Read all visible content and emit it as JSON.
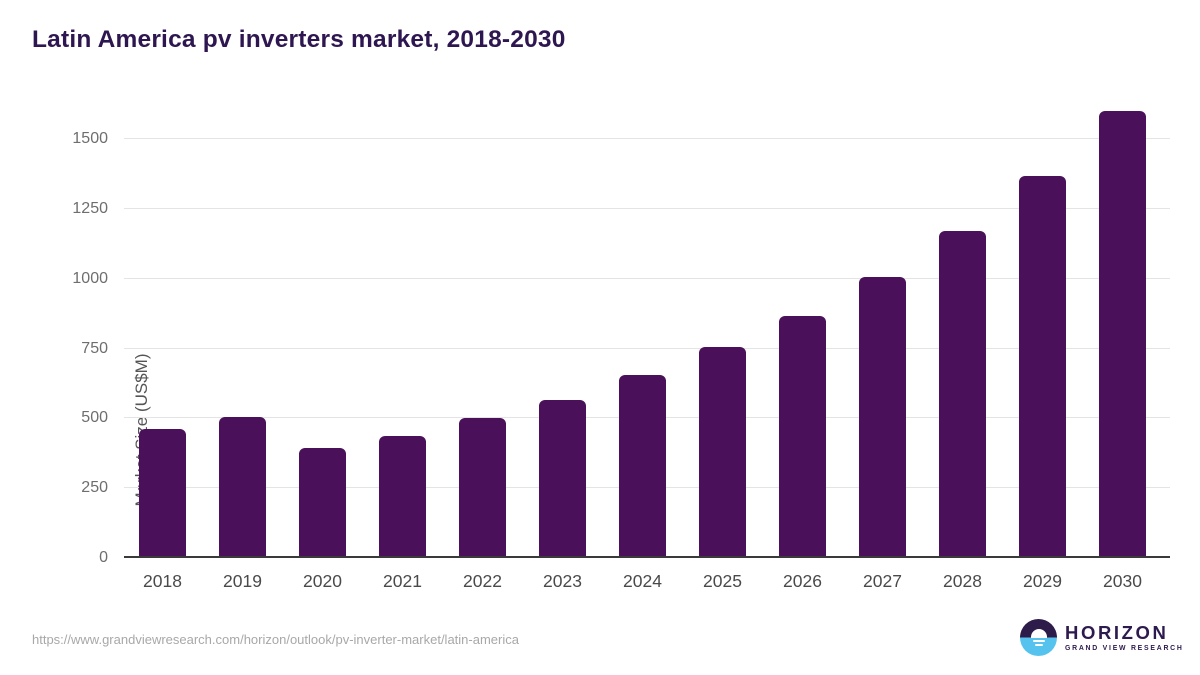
{
  "title": "Latin America pv inverters market, 2018-2030",
  "source_url": "https://www.grandviewresearch.com/horizon/outlook/pv-inverter-market/latin-america",
  "logo": {
    "name": "HORIZON",
    "subtitle": "GRAND VIEW RESEARCH",
    "icon": "horizon-sun-icon"
  },
  "colors": {
    "bar": "#4a1059",
    "title": "#2e1650",
    "gridline": "#e4e4e4",
    "axis_line": "#3a3a3a",
    "y_tick_label": "#6e6e6e",
    "x_tick_label": "#4a4a4a",
    "axis_title": "#555555",
    "footer": "#a8a8a8",
    "logo_purple": "#2d1b4a",
    "logo_blue": "#56c3ef"
  },
  "chart_data": {
    "type": "bar",
    "title": "Latin America pv inverters market, 2018-2030",
    "categories": [
      "2018",
      "2019",
      "2020",
      "2021",
      "2022",
      "2023",
      "2024",
      "2025",
      "2026",
      "2027",
      "2028",
      "2029",
      "2030"
    ],
    "values": [
      462,
      504,
      394,
      437,
      502,
      566,
      654,
      754,
      866,
      1008,
      1170,
      1370,
      1600
    ],
    "xlabel": "",
    "ylabel": "Market Size (US$M)",
    "ylim": [
      0,
      1640
    ],
    "yticks": [
      0,
      250,
      500,
      750,
      1000,
      1250,
      1500
    ],
    "grid": true,
    "legend": false,
    "bar_color": "#4a1059"
  }
}
